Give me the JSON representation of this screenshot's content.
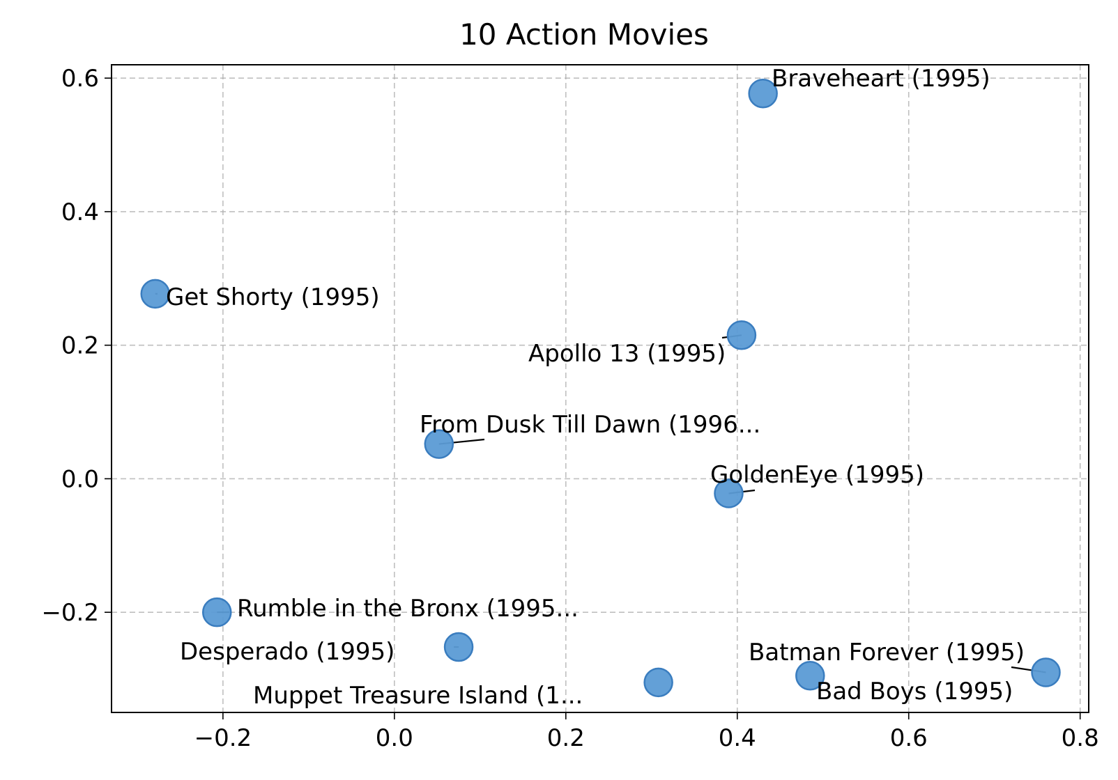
{
  "chart_data": {
    "type": "scatter",
    "title": "10 Action Movies",
    "xlabel": "",
    "ylabel": "",
    "xlim": [
      -0.33,
      0.81
    ],
    "ylim": [
      -0.35,
      0.62
    ],
    "xticks": [
      -0.2,
      0.0,
      0.2,
      0.4,
      0.6,
      0.8
    ],
    "yticks": [
      -0.2,
      0.0,
      0.2,
      0.4,
      0.6
    ],
    "xtick_labels": [
      "−0.2",
      "0.0",
      "0.2",
      "0.4",
      "0.6",
      "0.8"
    ],
    "ytick_labels": [
      "−0.2",
      "0.0",
      "0.2",
      "0.4",
      "0.6"
    ],
    "grid": true,
    "grid_style": "dashed",
    "marker_color": "#5b9bd5",
    "marker_edge_color": "#3a7dbf",
    "points": [
      {
        "x": 0.43,
        "y": 0.577,
        "label": "Braveheart (1995)"
      },
      {
        "x": -0.279,
        "y": 0.277,
        "label": "Get Shorty (1995)"
      },
      {
        "x": 0.405,
        "y": 0.215,
        "label": "Apollo 13 (1995)"
      },
      {
        "x": 0.052,
        "y": 0.052,
        "label": "From Dusk Till Dawn (1996..."
      },
      {
        "x": 0.39,
        "y": -0.022,
        "label": "GoldenEye (1995)"
      },
      {
        "x": -0.207,
        "y": -0.2,
        "label": "Rumble in the Bronx (1995..."
      },
      {
        "x": 0.075,
        "y": -0.252,
        "label": "Desperado (1995)"
      },
      {
        "x": 0.308,
        "y": -0.305,
        "label": "Muppet Treasure Island (1..."
      },
      {
        "x": 0.485,
        "y": -0.295,
        "label": "Bad Boys (1995)"
      },
      {
        "x": 0.76,
        "y": -0.29,
        "label": "Batman Forever (1995)"
      }
    ]
  }
}
